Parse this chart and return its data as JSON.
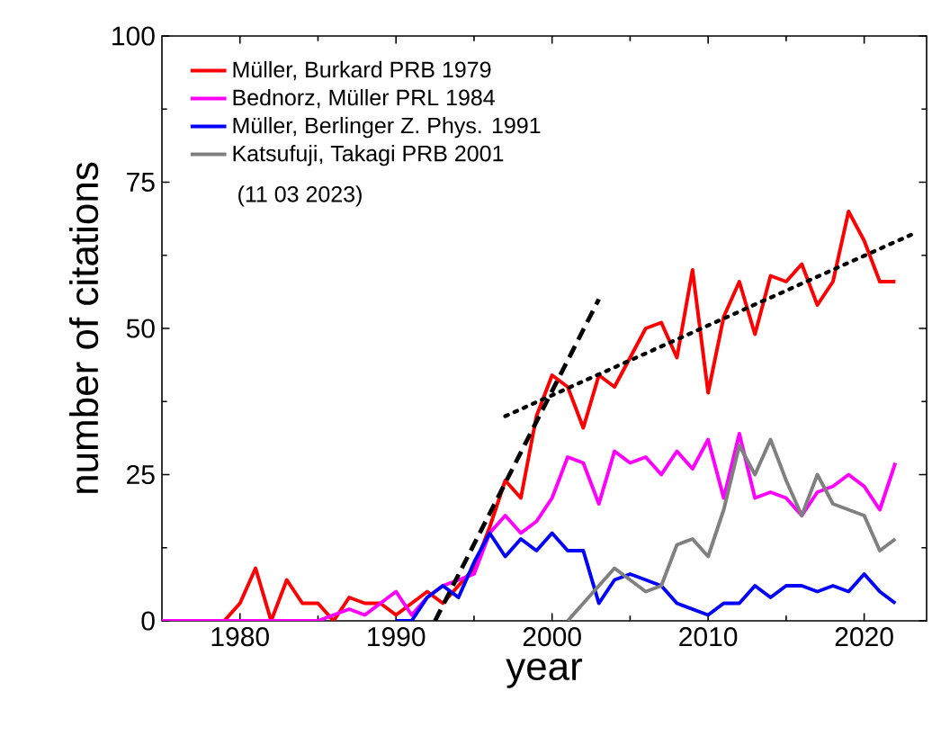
{
  "chart_data": {
    "type": "line",
    "xlabel": "year",
    "ylabel": "number of citations",
    "xlim": [
      1975,
      2024
    ],
    "ylim": [
      0,
      100
    ],
    "xticks": [
      1980,
      1990,
      2000,
      2010,
      2020
    ],
    "yticks": [
      0,
      25,
      50,
      75,
      100
    ],
    "legend": "top left",
    "annotations": [
      "(11 03 2023)"
    ],
    "series": [
      {
        "name": "Müller, Burkard PRB 1979",
        "color": "#ff0000",
        "x": [
          1978,
          1979,
          1980,
          1981,
          1982,
          1983,
          1984,
          1985,
          1986,
          1987,
          1988,
          1989,
          1990,
          1991,
          1992,
          1993,
          1994,
          1995,
          1996,
          1997,
          1998,
          1999,
          2000,
          2001,
          2002,
          2003,
          2004,
          2005,
          2006,
          2007,
          2008,
          2009,
          2010,
          2011,
          2012,
          2013,
          2014,
          2015,
          2016,
          2017,
          2018,
          2019,
          2020,
          2021,
          2022
        ],
        "values": [
          0,
          0,
          3,
          9,
          0,
          7,
          3,
          3,
          0,
          4,
          3,
          3,
          1,
          3,
          5,
          3,
          6,
          9,
          16,
          24,
          21,
          35,
          42,
          40,
          33,
          42,
          40,
          45,
          50,
          51,
          45,
          60,
          39,
          52,
          58,
          49,
          59,
          58,
          61,
          54,
          58,
          70,
          65,
          58,
          58
        ]
      },
      {
        "name": "Bednorz, Müller PRL 1984",
        "color": "#ff00ff",
        "x": [
          1975,
          1976,
          1977,
          1978,
          1979,
          1980,
          1981,
          1982,
          1983,
          1984,
          1985,
          1986,
          1987,
          1988,
          1989,
          1990,
          1991,
          1992,
          1993,
          1994,
          1995,
          1996,
          1997,
          1998,
          1999,
          2000,
          2001,
          2002,
          2003,
          2004,
          2005,
          2006,
          2007,
          2008,
          2009,
          2010,
          2011,
          2012,
          2013,
          2014,
          2015,
          2016,
          2017,
          2018,
          2019,
          2020,
          2021,
          2022
        ],
        "values": [
          0,
          0,
          0,
          0,
          0,
          0,
          0,
          0,
          0,
          0,
          0,
          1,
          2,
          1,
          3,
          5,
          1,
          4,
          6,
          7,
          8,
          15,
          18,
          15,
          17,
          21,
          28,
          27,
          20,
          29,
          27,
          28,
          25,
          29,
          26,
          31,
          21,
          32,
          21,
          22,
          21,
          18,
          22,
          23,
          25,
          23,
          19,
          27
        ]
      },
      {
        "name": "Müller, Berlinger Z. Phys. 1991",
        "color": "#0000ff",
        "x": [
          1990,
          1991,
          1992,
          1993,
          1994,
          1995,
          1996,
          1997,
          1998,
          1999,
          2000,
          2001,
          2002,
          2003,
          2004,
          2005,
          2006,
          2007,
          2008,
          2009,
          2010,
          2011,
          2012,
          2013,
          2014,
          2015,
          2016,
          2017,
          2018,
          2019,
          2020,
          2021,
          2022
        ],
        "values": [
          0,
          0,
          4,
          6,
          4,
          10,
          15,
          11,
          14,
          12,
          15,
          12,
          12,
          3,
          7,
          8,
          7,
          6,
          3,
          2,
          1,
          3,
          3,
          6,
          4,
          6,
          6,
          5,
          6,
          5,
          8,
          5,
          3
        ]
      },
      {
        "name": "Katsufuji, Takagi PRB 2001",
        "color": "#808080",
        "x": [
          2001,
          2002,
          2003,
          2004,
          2005,
          2006,
          2007,
          2008,
          2009,
          2010,
          2011,
          2012,
          2013,
          2014,
          2015,
          2016,
          2017,
          2018,
          2019,
          2020,
          2021,
          2022
        ],
        "values": [
          0,
          3,
          6,
          9,
          7,
          5,
          6,
          13,
          14,
          11,
          19,
          30,
          25,
          31,
          24,
          18,
          25,
          20,
          19,
          18,
          12,
          14
        ]
      },
      {
        "type": "line",
        "color": "#000000",
        "line_style": "dashed",
        "x": [
          1992.5,
          2003
        ],
        "values": [
          0,
          55
        ]
      },
      {
        "type": "line",
        "color": "#000000",
        "line_style": "dotted",
        "x": [
          1997,
          2023
        ],
        "values": [
          35,
          66
        ]
      }
    ]
  }
}
